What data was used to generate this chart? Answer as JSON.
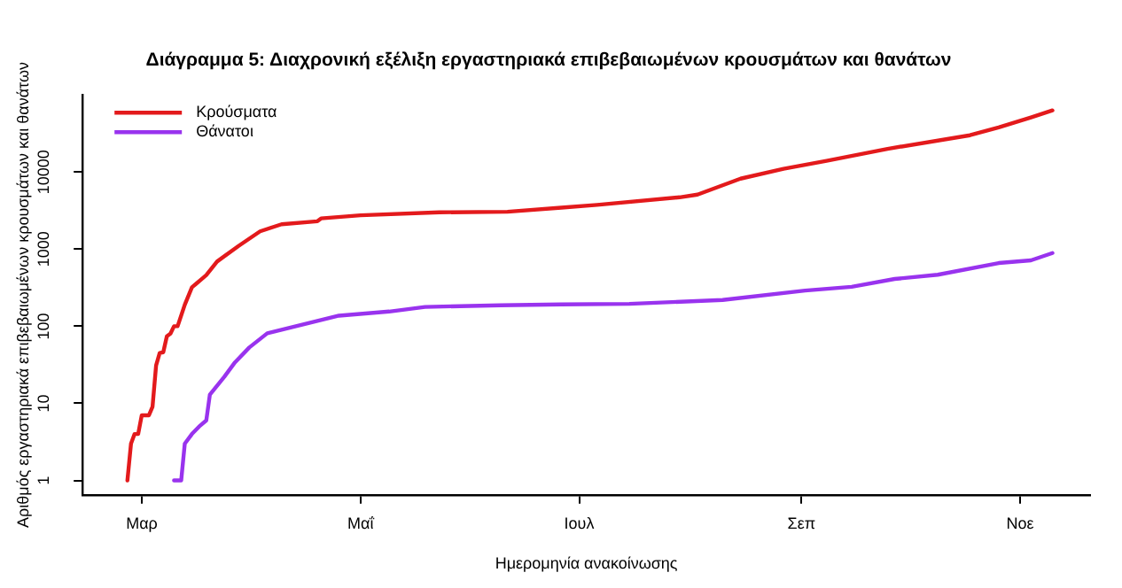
{
  "chart_data": {
    "type": "line",
    "title": "Διάγραμμα 5: Διαχρονική εξέλιξη εργαστηριακά επιβεβαιωμένων κρουσμάτων και θανάτων",
    "xlabel": "Ημερομηνία ανακοίνωσης",
    "ylabel": "Αριθμός εργαστηριακά επιβεβαιωμένων κρουσμάτων και θανάτων",
    "log": "y",
    "grid": false,
    "legend": "top left",
    "marker": "none",
    "line_style": "solid",
    "categories": [
      null,
      null,
      null,
      null,
      null,
      null,
      null,
      null,
      null,
      null,
      null,
      null,
      null,
      null,
      null,
      null,
      "Μαρ",
      null,
      null,
      null,
      null,
      null,
      null,
      null,
      null,
      null,
      null,
      null,
      null,
      null,
      null,
      null,
      null,
      null,
      null,
      null,
      null,
      null,
      null,
      null,
      null,
      null,
      null,
      null,
      null,
      null,
      null,
      null,
      null,
      null,
      null,
      null,
      null,
      null,
      null,
      null,
      null,
      null,
      null,
      null,
      null,
      null,
      null,
      null,
      null,
      null,
      null,
      null,
      null,
      null,
      null,
      null,
      null,
      null,
      null,
      null,
      null,
      "Μαΐ",
      null,
      null,
      null,
      null,
      null,
      null,
      null,
      null,
      null,
      null,
      null,
      null,
      null,
      null,
      null,
      null,
      null,
      null,
      null,
      null,
      null,
      null,
      null,
      null,
      null,
      null,
      null,
      null,
      null,
      null,
      null,
      null,
      null,
      null,
      null,
      null,
      null,
      null,
      null,
      null,
      null,
      null,
      null,
      null,
      null,
      null,
      null,
      null,
      null,
      null,
      null,
      null,
      null,
      null,
      null,
      null,
      null,
      null,
      null,
      null,
      "Ιουλ",
      null,
      null,
      null,
      null,
      null,
      null,
      null,
      null,
      null,
      null,
      null,
      null,
      null,
      null,
      null,
      null,
      null,
      null,
      null,
      null,
      null,
      null,
      null,
      null,
      null,
      null,
      null,
      null,
      null,
      null,
      null,
      null,
      null,
      null,
      null,
      null,
      null,
      null,
      null,
      null,
      null,
      null,
      null,
      null,
      null,
      null,
      null,
      null,
      null,
      null,
      null,
      null,
      null,
      null,
      null,
      null,
      null,
      null,
      null,
      null,
      null,
      "Σεπ",
      null,
      null,
      null,
      null,
      null,
      null,
      null,
      null,
      null,
      null,
      null,
      null,
      null,
      null,
      null,
      null,
      null,
      null,
      null,
      null,
      null,
      null,
      null,
      null,
      null,
      null,
      null,
      null,
      null,
      null,
      null,
      null,
      null,
      null,
      null,
      null,
      null,
      null,
      null,
      null,
      null,
      null,
      null,
      null,
      null,
      null,
      null,
      null,
      null,
      null,
      null,
      null,
      null,
      null,
      null,
      null,
      null,
      null,
      null,
      null,
      "Νοε",
      null,
      null,
      null,
      null,
      null,
      null,
      null,
      null,
      null,
      null,
      null,
      null,
      null,
      null,
      null,
      null,
      null,
      null,
      null
    ],
    "ylim": [
      0.65,
      100000
    ],
    "yticks": [
      1,
      10,
      100,
      1000,
      10000
    ],
    "series": [
      {
        "name": "Κρούσματα",
        "color": "#e31a1c",
        "values": [
          null,
          null,
          null,
          null,
          null,
          null,
          null,
          null,
          null,
          null,
          null,
          null,
          1,
          3,
          4,
          4,
          7,
          null,
          7,
          9,
          31,
          45,
          46,
          74,
          80,
          100,
          100,
          null,
          190,
          null,
          320,
          350,
          null,
          420,
          460,
          null,
          null,
          690,
          null,
          null,
          null,
          null,
          null,
          1100,
          null,
          null,
          null,
          null,
          null,
          1700,
          null,
          null,
          null,
          null,
          null,
          2100,
          null,
          null,
          null,
          null,
          null,
          null,
          null,
          null,
          null,
          2300,
          2500,
          null,
          null,
          null,
          null,
          null,
          null,
          null,
          null,
          null,
          null,
          2750,
          null,
          null,
          null,
          null,
          null,
          null,
          null,
          null,
          null,
          null,
          null,
          null,
          null,
          null,
          null,
          null,
          null,
          null,
          null,
          null,
          null,
          3000,
          null,
          null,
          null,
          null,
          null,
          null,
          null,
          null,
          null,
          null,
          null,
          null,
          null,
          null,
          null,
          null,
          null,
          null,
          3050,
          null,
          null,
          null,
          null,
          null,
          null,
          null,
          null,
          null,
          null,
          null,
          null,
          null,
          null,
          3450,
          null,
          null,
          null,
          null,
          null,
          null,
          null,
          null,
          null,
          3750,
          null,
          null,
          null,
          null,
          null,
          null,
          null,
          null,
          null,
          null,
          null,
          null,
          null,
          null,
          null,
          null,
          null,
          null,
          null,
          null,
          null,
          null,
          4700,
          null,
          null,
          null,
          null,
          5100,
          null,
          null,
          null,
          null,
          null,
          null,
          null,
          null,
          null,
          null,
          null,
          8200,
          null,
          null,
          null,
          null,
          null,
          null,
          null,
          null,
          null,
          null,
          null,
          11000,
          null,
          null,
          null,
          null,
          null,
          null,
          null,
          null,
          null,
          null,
          null,
          14000,
          null,
          null,
          null,
          null,
          null,
          null,
          null,
          null,
          null,
          null,
          null,
          null,
          null,
          null,
          null,
          null,
          20000,
          null,
          null,
          null,
          null,
          null,
          null,
          null,
          null,
          null,
          null,
          null,
          null,
          null,
          null,
          null,
          null,
          null,
          null,
          null,
          null,
          null,
          null,
          30000,
          null,
          null,
          null,
          null,
          null,
          null,
          null,
          38000,
          null,
          null,
          null,
          null,
          null,
          null,
          null,
          null,
          51000,
          null,
          null,
          null,
          null,
          null,
          63000,
          null,
          null,
          null,
          null,
          null,
          null,
          null,
          null,
          null,
          null
        ]
      },
      {
        "name": "Θάνατοι",
        "color": "#9933ee",
        "values": [
          null,
          null,
          null,
          null,
          null,
          null,
          null,
          null,
          null,
          null,
          null,
          null,
          null,
          null,
          null,
          null,
          null,
          null,
          null,
          null,
          null,
          null,
          null,
          null,
          null,
          1,
          null,
          1,
          3,
          null,
          4,
          null,
          5,
          null,
          6,
          13,
          null,
          null,
          null,
          22,
          null,
          null,
          34,
          null,
          null,
          null,
          53,
          null,
          null,
          null,
          null,
          81,
          null,
          null,
          null,
          null,
          null,
          null,
          null,
          100,
          null,
          null,
          null,
          null,
          null,
          null,
          null,
          null,
          null,
          null,
          null,
          137,
          null,
          null,
          null,
          null,
          null,
          null,
          null,
          null,
          null,
          null,
          null,
          null,
          null,
          155,
          null,
          null,
          null,
          null,
          null,
          null,
          null,
          null,
          null,
          178,
          null,
          null,
          null,
          null,
          null,
          null,
          null,
          null,
          null,
          null,
          null,
          null,
          null,
          null,
          null,
          null,
          null,
          null,
          null,
          null,
          187,
          null,
          null,
          null,
          null,
          null,
          null,
          null,
          null,
          null,
          null,
          null,
          null,
          null,
          null,
          null,
          null,
          192,
          null,
          null,
          null,
          null,
          null,
          null,
          null,
          null,
          null,
          null,
          null,
          null,
          null,
          null,
          null,
          null,
          null,
          null,
          195,
          null,
          null,
          null,
          null,
          null,
          null,
          null,
          null,
          null,
          null,
          null,
          null,
          null,
          null,
          null,
          null,
          null,
          null,
          null,
          null,
          null,
          null,
          null,
          null,
          null,
          219,
          null,
          null,
          null,
          null,
          null,
          null,
          null,
          null,
          null,
          null,
          null,
          null,
          null,
          null,
          null,
          null,
          null,
          null,
          null,
          null,
          null,
          null,
          290,
          null,
          null,
          null,
          null,
          null,
          null,
          null,
          null,
          null,
          null,
          null,
          null,
          325,
          null,
          null,
          null,
          null,
          null,
          null,
          null,
          null,
          null,
          null,
          null,
          410,
          null,
          null,
          null,
          null,
          null,
          null,
          null,
          null,
          null,
          null,
          null,
          465,
          null,
          null,
          null,
          null,
          null,
          null,
          null,
          null,
          null,
          null,
          null,
          null,
          null,
          null,
          null,
          null,
          660,
          null,
          null,
          null,
          null,
          null,
          null,
          null,
          null,
          715,
          null,
          null,
          null,
          null,
          null,
          890,
          null,
          null,
          null,
          null,
          null,
          null,
          null,
          null,
          null,
          null
        ]
      }
    ]
  }
}
